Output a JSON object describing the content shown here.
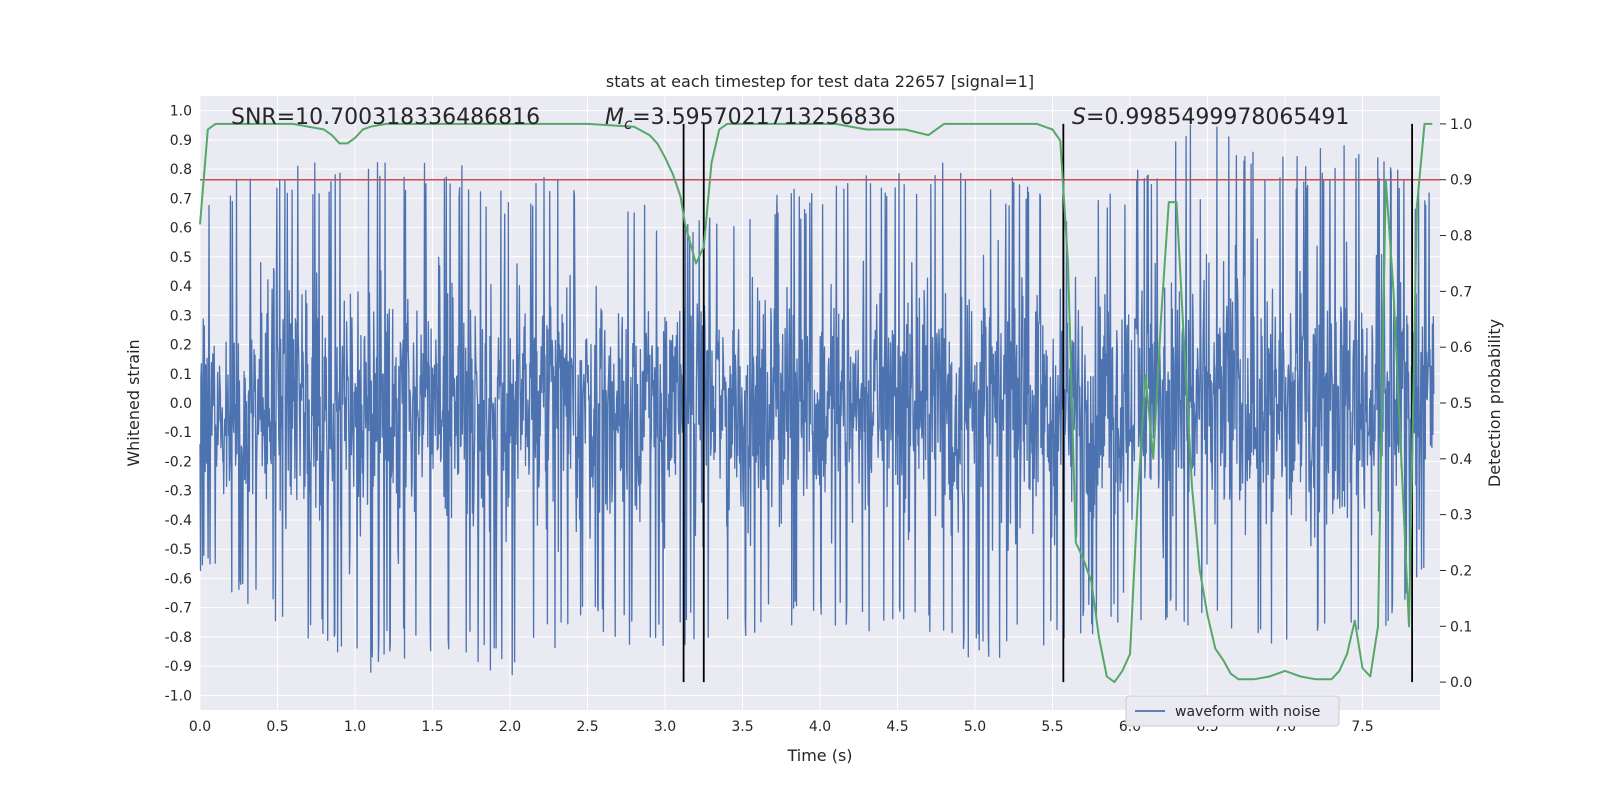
{
  "chart_data": {
    "type": "line",
    "title": "stats at each timestep for test data 22657 [signal=1]",
    "xlabel": "Time (s)",
    "ylabel": "Whitened strain",
    "ylabel_right": "Detection probability",
    "xlim": [
      0.0,
      8.0
    ],
    "ylim": [
      -1.05,
      1.05
    ],
    "ylim_right": [
      -0.05,
      1.05
    ],
    "x_ticks": [
      "0.0",
      "0.5",
      "1.0",
      "1.5",
      "2.0",
      "2.5",
      "3.0",
      "3.5",
      "4.0",
      "4.5",
      "5.0",
      "5.5",
      "6.0",
      "6.5",
      "7.0",
      "7.5"
    ],
    "y_ticks": [
      "1.0",
      "0.9",
      "0.8",
      "0.7",
      "0.6",
      "0.5",
      "0.4",
      "0.3",
      "0.2",
      "0.1",
      "0.0",
      "-0.1",
      "-0.2",
      "-0.3",
      "-0.4",
      "-0.5",
      "-0.6",
      "-0.7",
      "-0.8",
      "-0.9",
      "-1.0"
    ],
    "y_ticks_right": [
      "1.0",
      "0.9",
      "0.8",
      "0.7",
      "0.6",
      "0.5",
      "0.4",
      "0.3",
      "0.2",
      "0.1",
      "0.0"
    ],
    "grid": true,
    "legend_position": "bottom-right",
    "annotations": {
      "snr": "SNR=10.700318336486816",
      "mc_prefix": "M",
      "mc_sub": "c",
      "mc_value": "=3.5957021713256836",
      "s_prefix": "S",
      "s_value": "=0.9985499978065491"
    },
    "colors": {
      "waveform": "#4c72b0",
      "probability": "#55a868",
      "threshold": "#c44e52",
      "markers": "#000000",
      "background": "#eaeaf2"
    },
    "series": [
      {
        "name": "waveform with noise",
        "axis": "left",
        "style": "dense noise",
        "amplitude_envelope": {
          "x": [
            0.0,
            0.5,
            1.0,
            1.5,
            2.0,
            2.5,
            3.0,
            3.5,
            4.0,
            4.5,
            5.0,
            5.5,
            6.0,
            6.5,
            7.0,
            7.5,
            8.0
          ],
          "upper_peak": [
            0.75,
            0.8,
            0.85,
            0.85,
            0.75,
            0.8,
            0.65,
            0.7,
            0.75,
            0.8,
            0.85,
            0.7,
            0.8,
            1.0,
            0.85,
            0.9,
            0.7
          ],
          "lower_peak": [
            -0.6,
            -0.75,
            -0.95,
            -0.85,
            -0.95,
            -0.8,
            -0.85,
            -0.8,
            -0.75,
            -0.8,
            -0.9,
            -0.85,
            -0.75,
            -0.8,
            -0.85,
            -0.85,
            -0.6
          ]
        }
      },
      {
        "name": "detection probability",
        "axis": "right",
        "x": [
          0.0,
          0.05,
          0.1,
          0.2,
          0.4,
          0.6,
          0.8,
          0.85,
          0.9,
          0.95,
          1.0,
          1.05,
          1.1,
          1.2,
          1.4,
          1.6,
          1.8,
          2.0,
          2.2,
          2.5,
          2.8,
          2.9,
          2.95,
          3.0,
          3.05,
          3.1,
          3.13,
          3.2,
          3.25,
          3.3,
          3.35,
          3.4,
          3.5,
          3.7,
          3.9,
          4.1,
          4.3,
          4.45,
          4.55,
          4.7,
          4.8,
          4.95,
          5.2,
          5.4,
          5.5,
          5.55,
          5.6,
          5.65,
          5.7,
          5.75,
          5.8,
          5.85,
          5.9,
          5.95,
          6.0,
          6.05,
          6.1,
          6.15,
          6.2,
          6.25,
          6.3,
          6.35,
          6.4,
          6.45,
          6.5,
          6.55,
          6.6,
          6.65,
          6.7,
          6.8,
          6.9,
          7.0,
          7.05,
          7.1,
          7.2,
          7.3,
          7.35,
          7.4,
          7.45,
          7.5,
          7.55,
          7.6,
          7.65,
          7.7,
          7.75,
          7.8,
          7.85,
          7.9,
          7.95
        ],
        "values": [
          0.82,
          0.99,
          1.0,
          1.0,
          1.0,
          1.0,
          0.99,
          0.98,
          0.965,
          0.965,
          0.975,
          0.99,
          0.995,
          1.0,
          1.0,
          1.0,
          1.0,
          1.0,
          1.0,
          1.0,
          0.995,
          0.98,
          0.965,
          0.94,
          0.91,
          0.87,
          0.82,
          0.75,
          0.78,
          0.93,
          0.99,
          1.0,
          1.0,
          1.0,
          1.0,
          1.0,
          0.99,
          0.99,
          0.99,
          0.98,
          1.0,
          1.0,
          1.0,
          1.0,
          0.99,
          0.97,
          0.75,
          0.25,
          0.22,
          0.18,
          0.08,
          0.01,
          0.0,
          0.02,
          0.05,
          0.33,
          0.55,
          0.4,
          0.65,
          0.86,
          0.86,
          0.6,
          0.35,
          0.2,
          0.12,
          0.06,
          0.04,
          0.015,
          0.005,
          0.005,
          0.01,
          0.02,
          0.015,
          0.01,
          0.005,
          0.005,
          0.02,
          0.05,
          0.11,
          0.025,
          0.01,
          0.1,
          0.9,
          0.7,
          0.4,
          0.1,
          0.85,
          1.0,
          1.0
        ]
      },
      {
        "name": "threshold",
        "axis": "right",
        "values": [
          0.9
        ]
      }
    ],
    "vertical_markers": [
      3.12,
      3.25,
      5.57,
      7.82
    ]
  },
  "legend": {
    "entries": [
      "waveform with noise"
    ]
  }
}
